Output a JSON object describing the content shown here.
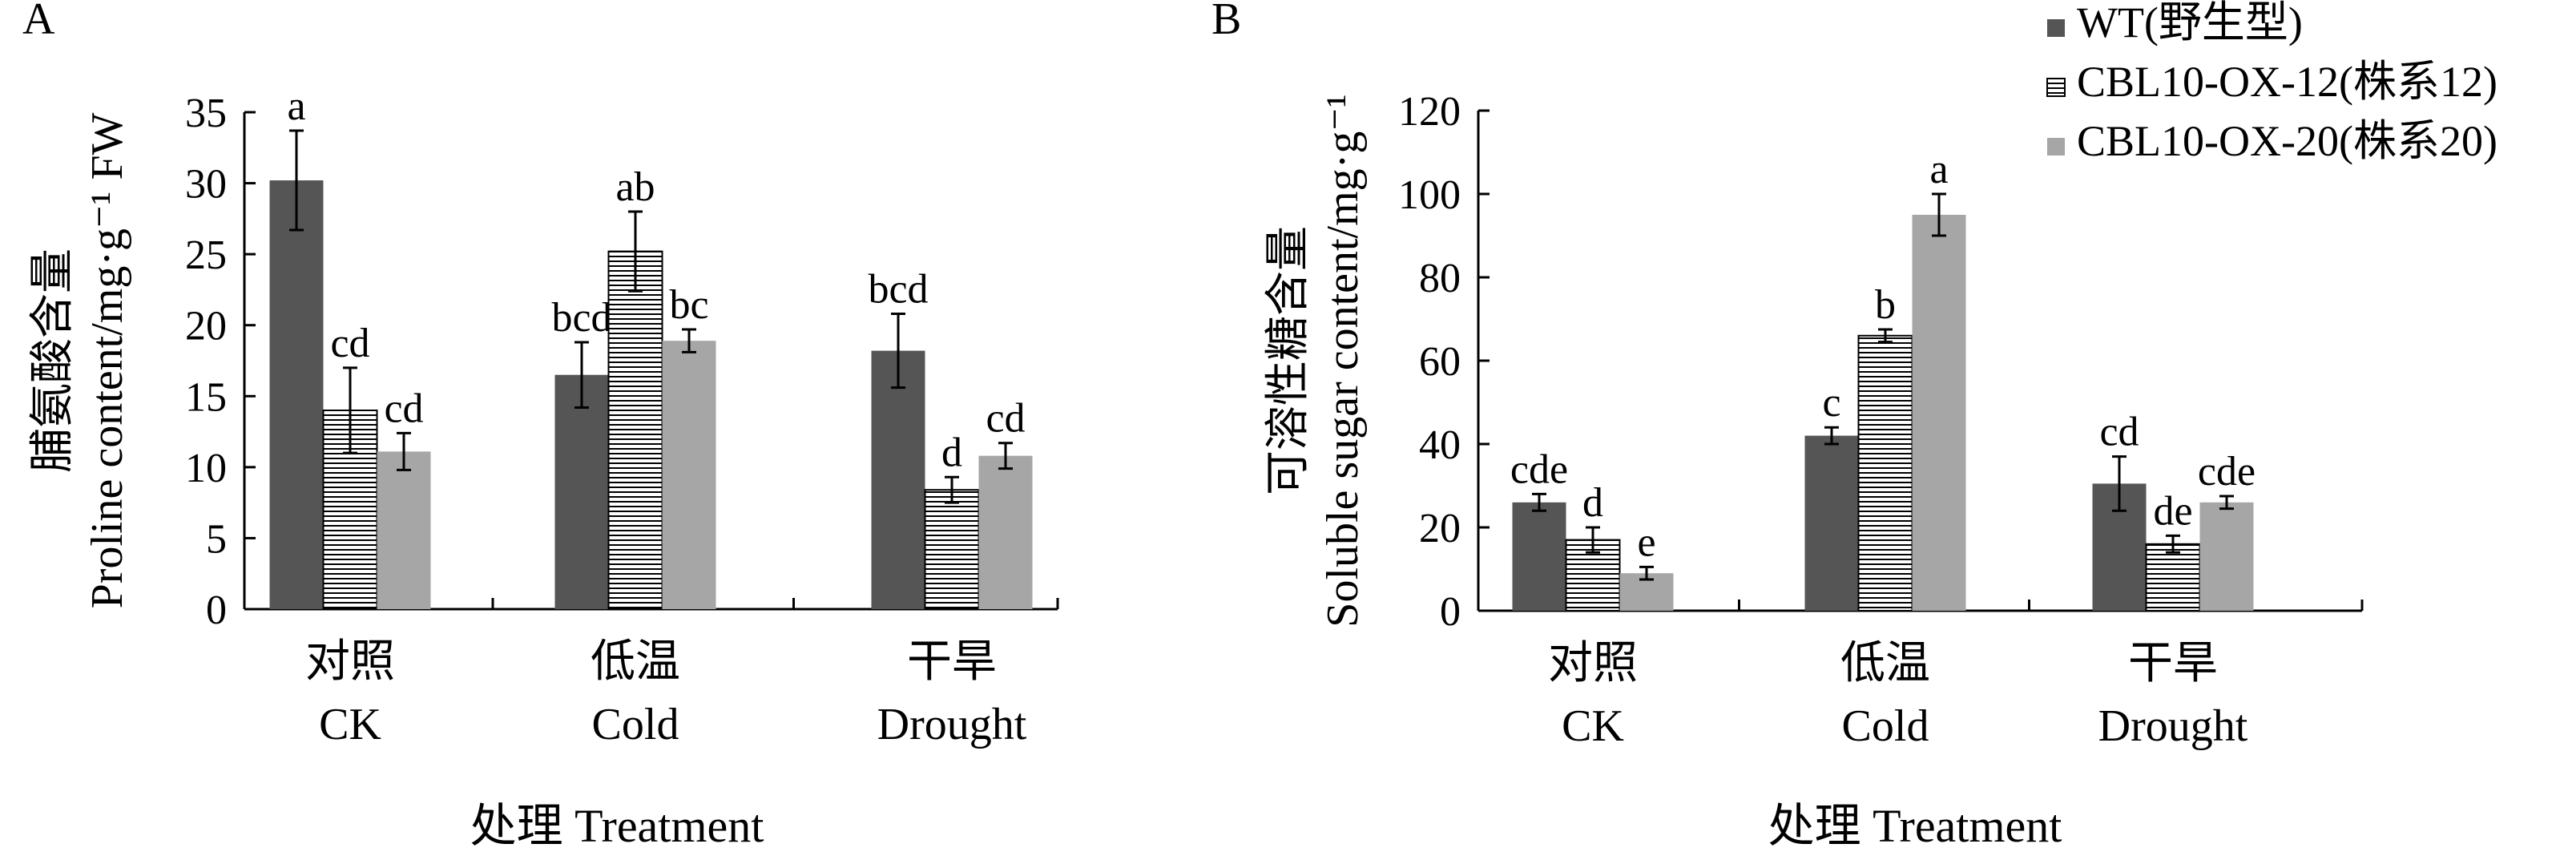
{
  "colors": {
    "WT": "#555555",
    "OX12_stripe": "#000000",
    "OX20": "#a6a6a6"
  },
  "legend": [
    {
      "key": "WT",
      "label": "WT(野生型)"
    },
    {
      "key": "OX12",
      "label": "CBL10-OX-12(株系12)"
    },
    {
      "key": "OX20",
      "label": "CBL10-OX-20(株系20)"
    }
  ],
  "chart_data": [
    {
      "panel": "A",
      "type": "bar",
      "xlabel": "处理 Treatment",
      "ylabel": "脯氨酸含量 Proline content/mg·g⁻¹ FW",
      "ylim": [
        0,
        35
      ],
      "yticks": [
        0,
        5,
        10,
        15,
        20,
        25,
        30,
        35
      ],
      "grid": false,
      "categories": [
        {
          "cn": "对照",
          "en": "CK"
        },
        {
          "cn": "低温",
          "en": "Cold"
        },
        {
          "cn": "干旱",
          "en": "Drought"
        }
      ],
      "series": [
        {
          "name": "WT(野生型)",
          "key": "WT",
          "values": [
            30.2,
            16.5,
            18.2
          ],
          "errors": [
            3.5,
            2.3,
            2.6
          ],
          "labels": [
            "a",
            "bcd",
            "bcd"
          ]
        },
        {
          "name": "CBL10-OX-12(株系12)",
          "key": "OX12",
          "values": [
            14.0,
            25.2,
            8.4
          ],
          "errors": [
            3.0,
            2.8,
            0.9
          ],
          "labels": [
            "cd",
            "ab",
            "d"
          ]
        },
        {
          "name": "CBL10-OX-20(株系20)",
          "key": "OX20",
          "values": [
            11.1,
            18.9,
            10.8
          ],
          "errors": [
            1.3,
            0.8,
            0.9
          ],
          "labels": [
            "cd",
            "bc",
            "cd"
          ]
        }
      ]
    },
    {
      "panel": "B",
      "type": "bar",
      "xlabel": "处理 Treatment",
      "ylabel": "可溶性糖含量 Soluble sugar content/mg·g⁻¹",
      "ylim": [
        0,
        120
      ],
      "yticks": [
        0,
        20,
        40,
        60,
        80,
        100,
        120
      ],
      "grid": false,
      "legend_position": "top-right",
      "categories": [
        {
          "cn": "对照",
          "en": "CK"
        },
        {
          "cn": "低温",
          "en": "Cold"
        },
        {
          "cn": "干旱",
          "en": "Drought"
        }
      ],
      "series": [
        {
          "name": "WT(野生型)",
          "key": "WT",
          "values": [
            26.0,
            42.0,
            30.5
          ],
          "errors": [
            2.0,
            2.0,
            6.5
          ],
          "labels": [
            "cde",
            "c",
            "cd"
          ]
        },
        {
          "name": "CBL10-OX-12(株系12)",
          "key": "OX12",
          "values": [
            17.0,
            66.0,
            16.0
          ],
          "errors": [
            3.0,
            1.5,
            2.0
          ],
          "labels": [
            "d",
            "b",
            "de"
          ]
        },
        {
          "name": "CBL10-OX-20(株系20)",
          "key": "OX20",
          "values": [
            9.0,
            95.0,
            26.0
          ],
          "errors": [
            1.5,
            5.0,
            1.5
          ],
          "labels": [
            "e",
            "a",
            "cde"
          ]
        }
      ]
    }
  ]
}
